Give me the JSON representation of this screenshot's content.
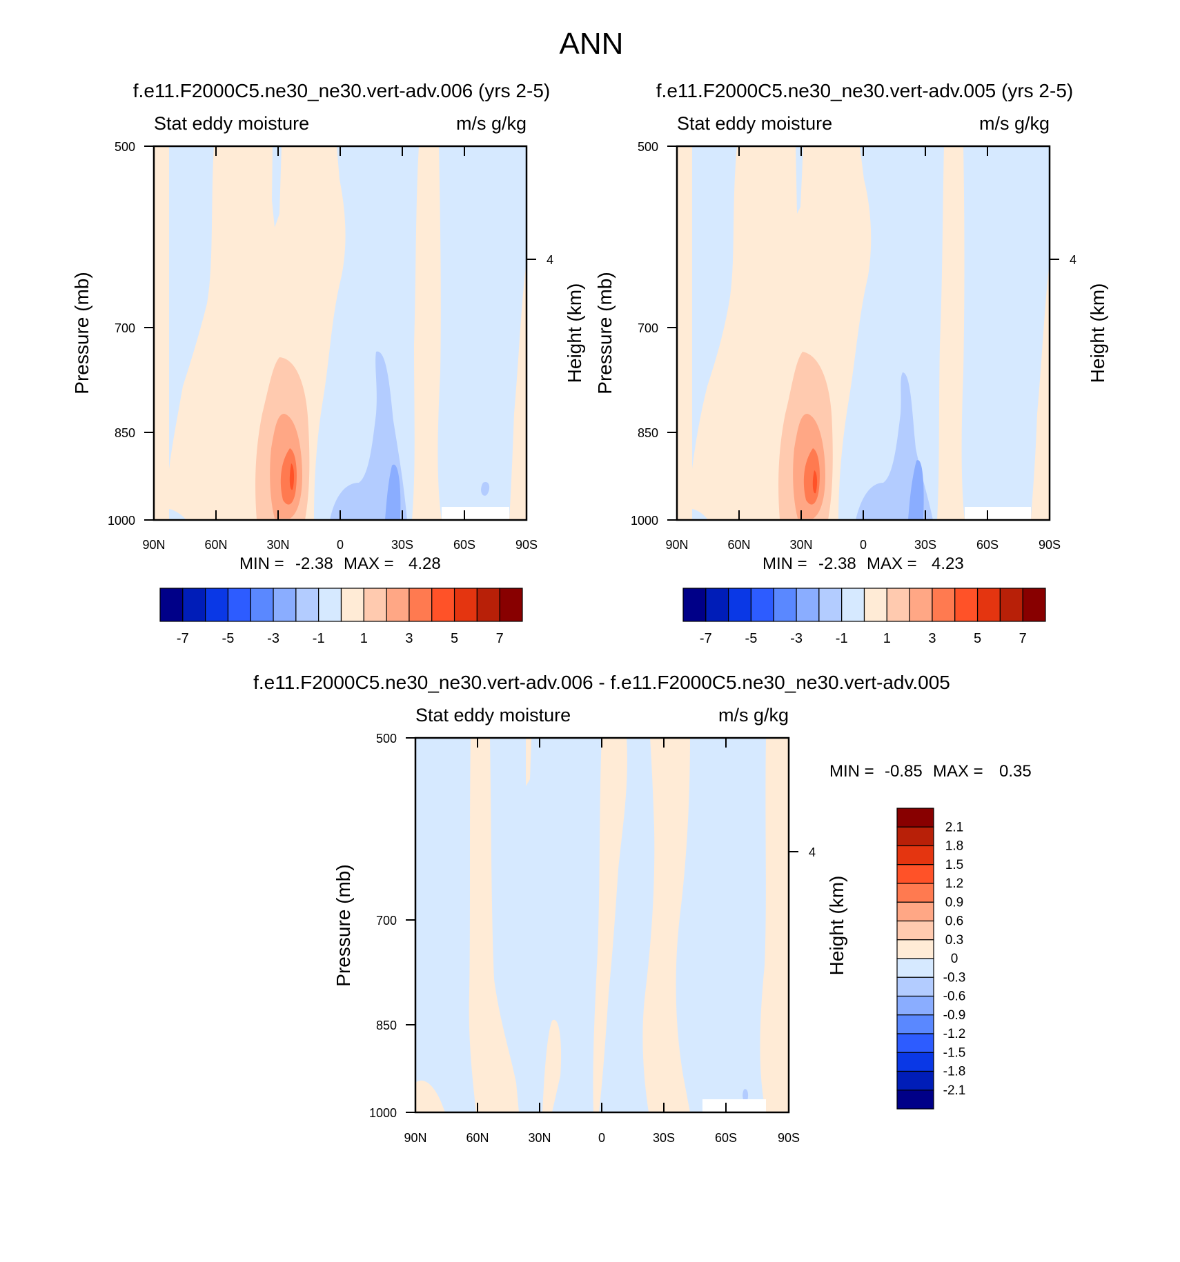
{
  "main_title": "ANN",
  "colors": {
    "pos": [
      "#FFEBD6",
      "#FFCAAF",
      "#FFA785",
      "#FF7A50",
      "#FF5228",
      "#E43510",
      "#B82008",
      "#880000"
    ],
    "neg": [
      "#D6E9FF",
      "#B3CCFF",
      "#8AADFF",
      "#5A88FF",
      "#2D5CFF",
      "#0A38E6",
      "#001DB8",
      "#000088"
    ]
  },
  "chart_data": [
    {
      "type": "heatmap",
      "title": "f.e11.F2000C5.ne30_ne30.vert-adv.006 (yrs 2-5)",
      "left_label": "Stat eddy moisture",
      "right_label": "m/s g/kg",
      "ylabel": "Pressure (mb)",
      "ylabel_right": "Height (km)",
      "x_ticks": [
        "90N",
        "60N",
        "30N",
        "0",
        "30S",
        "60S",
        "90S"
      ],
      "y_ticks": [
        "500",
        "700",
        "850",
        "1000"
      ],
      "y_right_ticks": [
        "4"
      ],
      "min_label": "MIN =",
      "min_value": "-2.38",
      "max_label": "MAX =",
      "max_value": "4.28",
      "colorbar_labels": [
        "-7",
        "-5",
        "-3",
        "-1",
        "1",
        "3",
        "5",
        "7"
      ]
    },
    {
      "type": "heatmap",
      "title": "f.e11.F2000C5.ne30_ne30.vert-adv.005 (yrs 2-5)",
      "left_label": "Stat eddy moisture",
      "right_label": "m/s g/kg",
      "ylabel": "Pressure (mb)",
      "ylabel_right": "Height (km)",
      "x_ticks": [
        "90N",
        "60N",
        "30N",
        "0",
        "30S",
        "60S",
        "90S"
      ],
      "y_ticks": [
        "500",
        "700",
        "850",
        "1000"
      ],
      "y_right_ticks": [
        "4"
      ],
      "min_label": "MIN =",
      "min_value": "-2.38",
      "max_label": "MAX =",
      "max_value": "4.23",
      "colorbar_labels": [
        "-7",
        "-5",
        "-3",
        "-1",
        "1",
        "3",
        "5",
        "7"
      ]
    },
    {
      "type": "heatmap",
      "title": "f.e11.F2000C5.ne30_ne30.vert-adv.006 - f.e11.F2000C5.ne30_ne30.vert-adv.005",
      "left_label": "Stat eddy moisture",
      "right_label": "m/s g/kg",
      "ylabel": "Pressure (mb)",
      "ylabel_right": "Height (km)",
      "x_ticks": [
        "90N",
        "60N",
        "30N",
        "0",
        "30S",
        "60S",
        "90S"
      ],
      "y_ticks": [
        "500",
        "700",
        "850",
        "1000"
      ],
      "y_right_ticks": [
        "4"
      ],
      "min_label": "MIN =",
      "min_value": "-0.85",
      "max_label": "MAX =",
      "max_value": "0.35",
      "colorbar_labels": [
        "2.1",
        "1.8",
        "1.5",
        "1.2",
        "0.9",
        "0.6",
        "0.3",
        "0",
        "-0.3",
        "-0.6",
        "-0.9",
        "-1.2",
        "-1.5",
        "-1.8",
        "-2.1"
      ]
    }
  ]
}
